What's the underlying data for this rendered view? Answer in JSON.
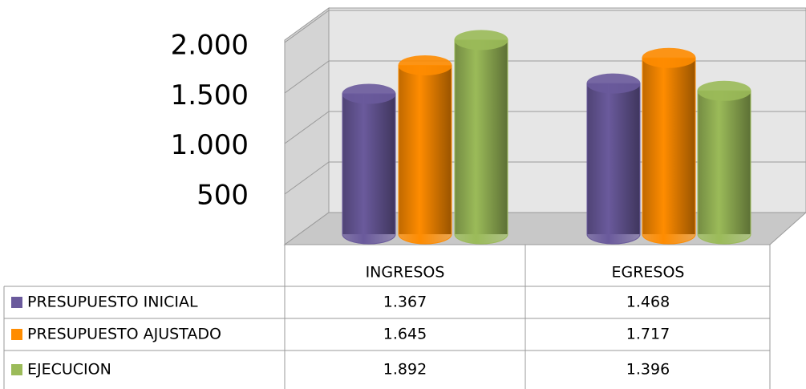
{
  "chart_data": {
    "type": "bar",
    "categories": [
      "INGRESOS",
      "EGRESOS"
    ],
    "series": [
      {
        "name": "PRESUPUESTO INICIAL",
        "color": "#6a5a9c",
        "values": [
          1367,
          1468
        ],
        "value_labels": [
          "1.367",
          "1.468"
        ]
      },
      {
        "name": "PRESUPUESTO AJUSTADO",
        "color": "#ff8c00",
        "values": [
          1645,
          1717
        ],
        "value_labels": [
          "1.645",
          "1.717"
        ]
      },
      {
        "name": "EJECUCION",
        "color": "#9bbb59",
        "values": [
          1892,
          1396
        ],
        "value_labels": [
          "1.892",
          "1.396"
        ]
      }
    ],
    "ylim": [
      0,
      2000
    ],
    "yticks": [
      {
        "value": 500,
        "label": "500"
      },
      {
        "value": 1000,
        "label": "1.000"
      },
      {
        "value": 1500,
        "label": "1.500"
      },
      {
        "value": 2000,
        "label": "2.000"
      }
    ],
    "grid": true
  }
}
